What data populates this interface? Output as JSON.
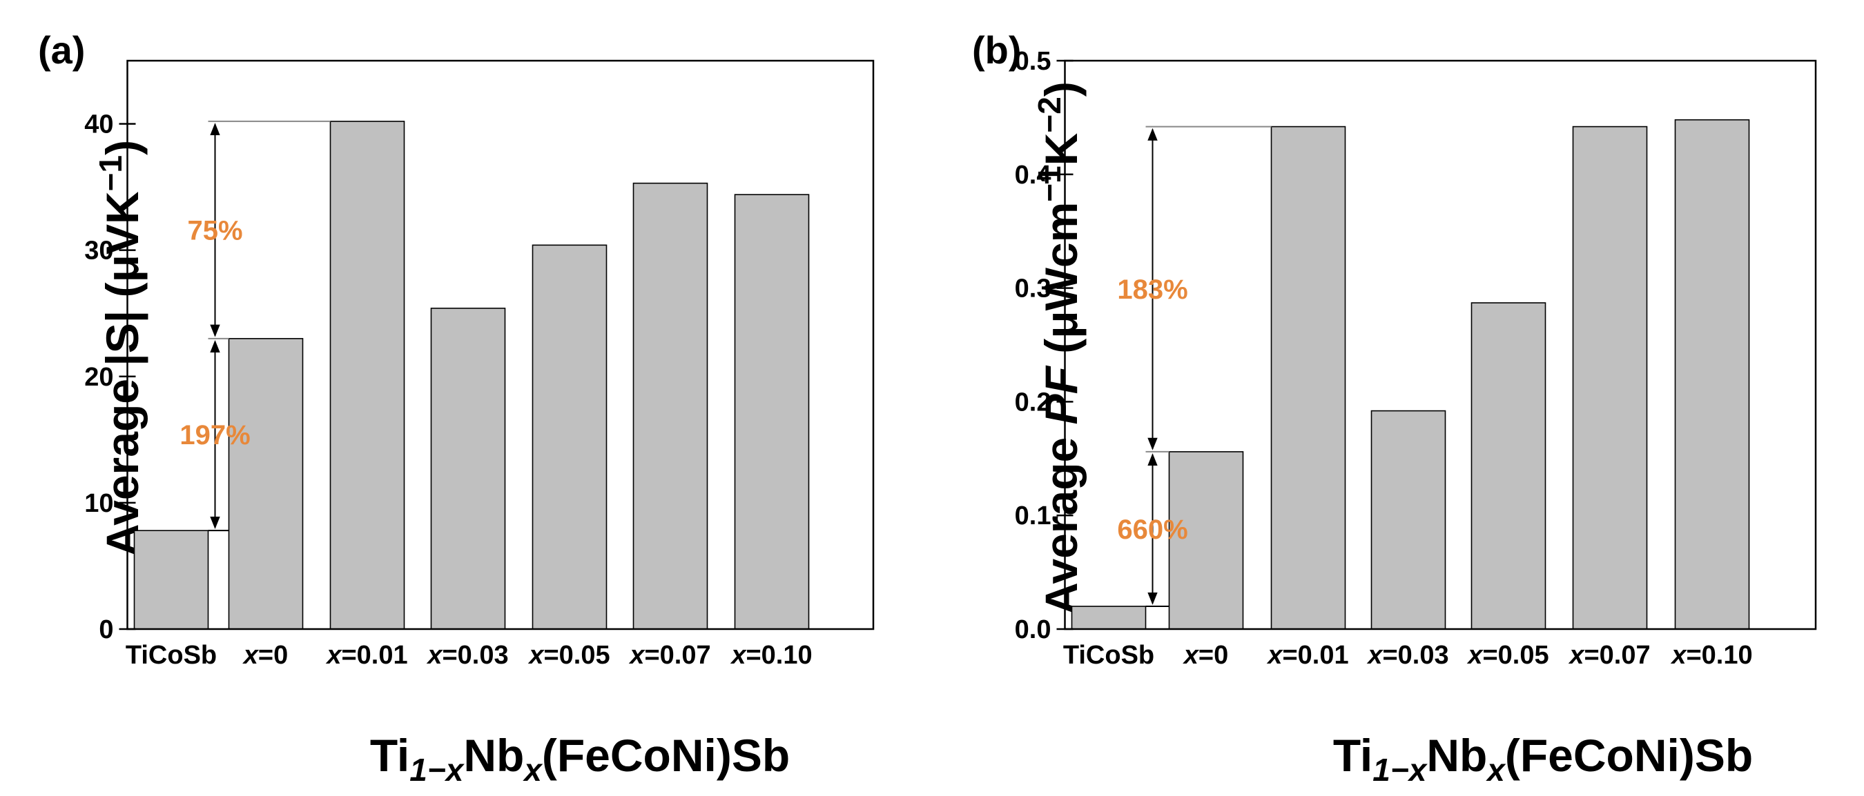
{
  "chart_data": [
    {
      "type": "bar",
      "panel_label": "(a)",
      "categories": [
        "TiCoSb",
        "x=0",
        "x=0.01",
        "x=0.03",
        "x=0.05",
        "x=0.07",
        "x=0.10"
      ],
      "values": [
        7.8,
        23.0,
        40.2,
        25.4,
        30.4,
        35.3,
        34.4
      ],
      "ylim": [
        0,
        45
      ],
      "yticks": [
        0,
        10,
        20,
        30,
        40
      ],
      "tick_labels": [
        "0",
        "10",
        "20",
        "30",
        "40"
      ],
      "ylabel": {
        "prefix": "Average |S| (μVK",
        "sup": "−1",
        "suffix": ")"
      },
      "xlabel": {
        "t1": "Ti",
        "s1": "1−x",
        "t2": "Nb",
        "s2": "x",
        "t3": "(FeCoNi)Sb"
      },
      "bar_color": "#c0c0c0",
      "annotations": [
        {
          "text": "75%",
          "from": 23.0,
          "to": 40.2
        },
        {
          "text": "197%",
          "from": 7.8,
          "to": 23.0
        }
      ],
      "annotation_color": "#e8883a"
    },
    {
      "type": "bar",
      "panel_label": "(b)",
      "categories": [
        "TiCoSb",
        "x=0",
        "x=0.01",
        "x=0.03",
        "x=0.05",
        "x=0.07",
        "x=0.10"
      ],
      "values": [
        0.02,
        0.156,
        0.442,
        0.192,
        0.287,
        0.442,
        0.448
      ],
      "ylim": [
        0,
        0.5
      ],
      "yticks": [
        0.0,
        0.1,
        0.2,
        0.3,
        0.4,
        0.5
      ],
      "tick_labels": [
        "0.0",
        "0.1",
        "0.2",
        "0.3",
        "0.4",
        "0.5"
      ],
      "ylabel": {
        "prefix": "Average ",
        "italic": "PF",
        "mid": " (μWcm",
        "sup1": "−1",
        "mid2": "K",
        "sup2": "−2",
        "suffix": ")"
      },
      "xlabel": {
        "t1": "Ti",
        "s1": "1−x",
        "t2": "Nb",
        "s2": "x",
        "t3": "(FeCoNi)Sb"
      },
      "bar_color": "#c0c0c0",
      "annotations": [
        {
          "text": "183%",
          "from": 0.156,
          "to": 0.442
        },
        {
          "text": "660%",
          "from": 0.02,
          "to": 0.156
        }
      ],
      "annotation_color": "#e8883a"
    }
  ]
}
